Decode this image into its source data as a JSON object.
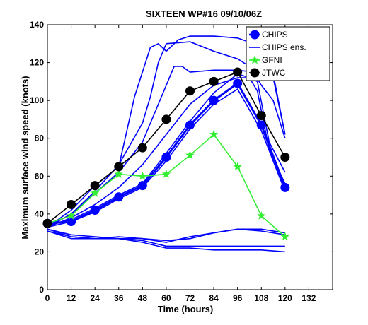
{
  "chart_data": {
    "type": "line",
    "title": "SIXTEEN   WP#16       09/10/06Z",
    "xlabel": "Time (hours)",
    "ylabel": "Maximum surface wind speed (knots)",
    "xlim": [
      0,
      144
    ],
    "ylim": [
      0,
      140
    ],
    "xticks": [
      0,
      12,
      24,
      36,
      48,
      60,
      72,
      84,
      96,
      108,
      120,
      132
    ],
    "yticks": [
      0,
      20,
      40,
      60,
      80,
      100,
      120,
      140
    ],
    "grid": false,
    "legend_position": "top-right",
    "series": [
      {
        "name": "CHIPS",
        "color": "#0000ff",
        "marker": "circle",
        "x": [
          0,
          12,
          24,
          36,
          48,
          60,
          72,
          84,
          96,
          108,
          120
        ],
        "y": [
          35,
          36,
          42,
          49,
          55,
          70,
          87,
          100,
          109,
          87,
          54
        ]
      },
      {
        "name": "CHIPS ens.",
        "color": "#0000ff",
        "marker": "none",
        "members": [
          {
            "x": [
              0,
              12,
              24,
              36,
              48,
              52,
              56,
              60,
              72,
              84,
              96,
              102,
              108,
              114,
              120
            ],
            "y": [
              33,
              40,
              52,
              66,
              88,
              102,
              120,
              130,
              131,
              126,
              122,
              118,
              120,
              112,
              82
            ]
          },
          {
            "x": [
              0,
              12,
              24,
              36,
              44,
              52,
              56,
              60,
              66,
              72,
              84,
              96,
              104,
              110,
              114,
              120
            ],
            "y": [
              33,
              42,
              55,
              65,
              102,
              128,
              130,
              126,
              132,
              134,
              134,
              133,
              130,
              127,
              114,
              82
            ]
          },
          {
            "x": [
              0,
              12,
              24,
              36,
              48,
              60,
              64,
              68,
              72,
              84,
              96,
              104,
              108,
              114,
              120
            ],
            "y": [
              33,
              40,
              51,
              62,
              78,
              108,
              118,
              118,
              115,
              116,
              116,
              115,
              108,
              100,
              80
            ]
          },
          {
            "x": [
              0,
              12,
              24,
              36,
              48,
              60,
              72,
              84,
              96,
              102,
              106,
              112,
              120
            ],
            "y": [
              33,
              38,
              45,
              54,
              66,
              82,
              98,
              108,
              112,
              112,
              110,
              78,
              62
            ]
          },
          {
            "x": [
              0,
              12,
              24,
              36,
              48,
              60,
              72,
              84,
              96,
              102,
              106,
              112,
              120
            ],
            "y": [
              34,
              37,
              43,
              50,
              56,
              72,
              89,
              104,
              114,
              112,
              105,
              74,
              56
            ]
          },
          {
            "x": [
              0,
              12,
              24,
              36,
              48,
              60,
              72,
              84,
              96,
              108,
              120
            ],
            "y": [
              33,
              36,
              41,
              48,
              54,
              68,
              85,
              98,
              106,
              84,
              52
            ]
          },
          {
            "x": [
              0,
              12,
              24,
              36,
              48,
              60,
              72,
              84,
              96,
              108,
              120
            ],
            "y": [
              32,
              28,
              27,
              28,
              27,
              26,
              27,
              30,
              32,
              32,
              30
            ]
          },
          {
            "x": [
              0,
              12,
              24,
              36,
              48,
              60,
              72,
              84,
              96,
              108,
              120
            ],
            "y": [
              32,
              29,
              28,
              27,
              27,
              25,
              28,
              30,
              32,
              31,
              29
            ]
          },
          {
            "x": [
              0,
              12,
              24,
              36,
              48,
              60,
              72,
              84,
              96,
              108,
              120
            ],
            "y": [
              31,
              28,
              27,
              27,
              26,
              23,
              23,
              23,
              23,
              23,
              23
            ]
          },
          {
            "x": [
              0,
              12,
              24,
              36,
              48,
              60,
              72,
              84,
              96,
              108,
              120
            ],
            "y": [
              31,
              27,
              27,
              27,
              25,
              22,
              22,
              21,
              21,
              21,
              20
            ]
          }
        ]
      },
      {
        "name": "GFNI",
        "color": "#33ee33",
        "marker": "star",
        "x": [
          0,
          12,
          24,
          36,
          48,
          60,
          72,
          84,
          96,
          108,
          120
        ],
        "y": [
          35,
          39,
          51,
          61,
          60,
          61,
          71,
          82,
          65,
          39,
          28
        ]
      },
      {
        "name": "JTWC",
        "color": "#000000",
        "marker": "circle",
        "x": [
          0,
          12,
          24,
          36,
          48,
          60,
          72,
          84,
          96,
          108,
          120
        ],
        "y": [
          35,
          45,
          55,
          65,
          75,
          90,
          105,
          110,
          115,
          92,
          70
        ]
      }
    ]
  }
}
